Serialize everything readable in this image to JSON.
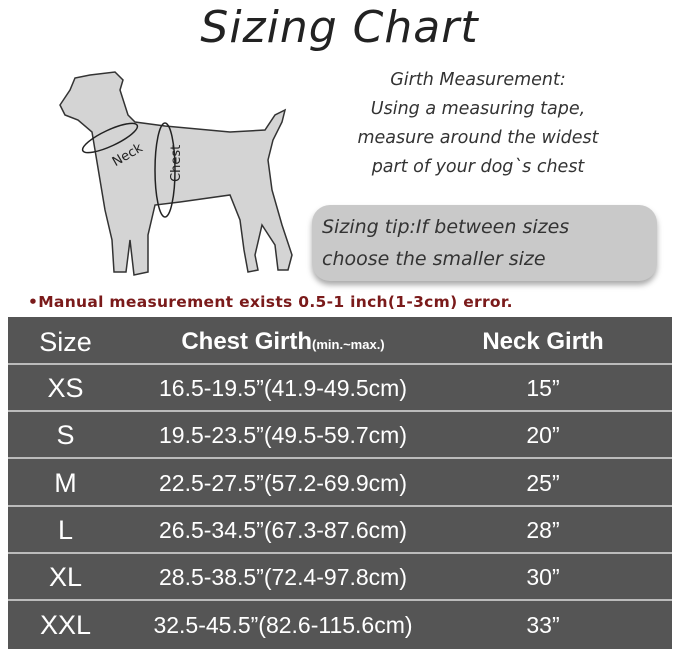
{
  "title": "Sizing Chart",
  "diagram": {
    "neck_label": "Neck",
    "chest_label": "Chest"
  },
  "girth": {
    "heading": "Girth Measurement:",
    "lines": [
      "Using a measuring tape,",
      "measure around the widest",
      "part of your dog`s chest"
    ]
  },
  "tip": {
    "lines": [
      "Sizing tip:If between sizes",
      "choose the smaller size"
    ]
  },
  "note": "•Manual measurement exists 0.5-1 inch(1-3cm) error.",
  "table": {
    "headers": {
      "size": "Size",
      "chest": "Chest Girth",
      "chest_sub": "(min.~max.)",
      "neck": "Neck Girth"
    },
    "rows": [
      {
        "size": "XS",
        "chest": "16.5-19.5”(41.9-49.5cm)",
        "neck": "15”"
      },
      {
        "size": "S",
        "chest": "19.5-23.5”(49.5-59.7cm)",
        "neck": "20”"
      },
      {
        "size": "M",
        "chest": "22.5-27.5”(57.2-69.9cm)",
        "neck": "25”"
      },
      {
        "size": "L",
        "chest": "26.5-34.5”(67.3-87.6cm)",
        "neck": "28”"
      },
      {
        "size": "XL",
        "chest": "28.5-38.5”(72.4-97.8cm)",
        "neck": "30”"
      },
      {
        "size": "XXL",
        "chest": "32.5-45.5”(82.6-115.6cm)",
        "neck": "33”"
      }
    ]
  },
  "colors": {
    "table_bg": "#555555",
    "note": "#7a1a1a",
    "tip_bg": "#c9c9c9"
  }
}
